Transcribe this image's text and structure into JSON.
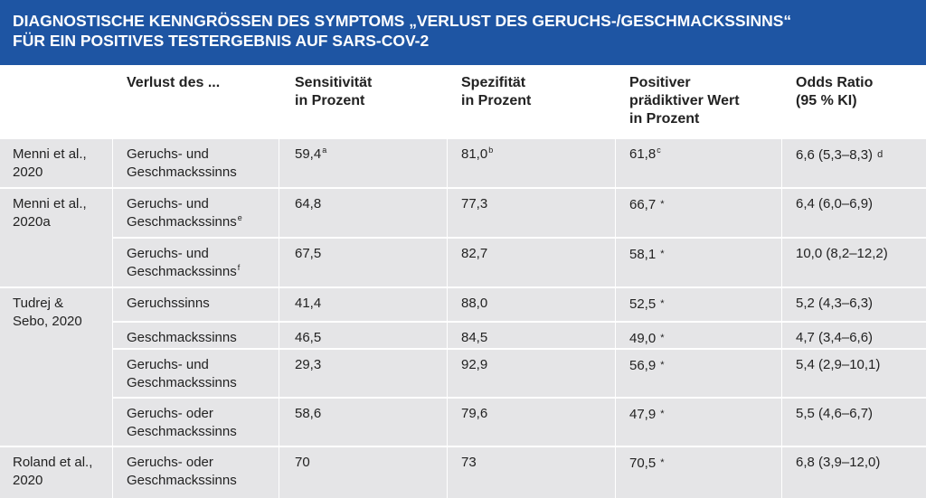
{
  "title": {
    "line1": "DIAGNOSTISCHE KENNGRÖSSEN DES SYMPTOMS „VERLUST DES GERUCHS-/GESCHMACKSSINNS“",
    "line2": "FÜR EIN POSITIVES TESTERGEBNIS AUF SARS-COV-2"
  },
  "headers": {
    "loss": "Verlust des ...",
    "sens_1": "Sensitivität",
    "sens_2": "in Prozent",
    "spez_1": "Spezifität",
    "spez_2": "in Prozent",
    "ppv_1": "Positiver",
    "ppv_2": "prädiktiver Wert",
    "ppv_3": "in Prozent",
    "or_1": "Odds Ratio",
    "or_2": "(95 % KI)"
  },
  "groups": [
    {
      "author_1": "Menni et al.,",
      "author_2": "2020"
    },
    {
      "author_1": "Menni et al.,",
      "author_2": "2020a"
    },
    {
      "author_1": "Tudrej &",
      "author_2": "Sebo, 2020"
    },
    {
      "author_1": "Roland et al.,",
      "author_2": "2020"
    }
  ],
  "rows": [
    {
      "loss_1": "Geruchs- und",
      "loss_2": "Geschmackssinns",
      "loss_sup": "",
      "sens": "59,4",
      "sens_sup": "a",
      "spez": "81,0",
      "spez_sup": "b",
      "ppv": "61,8",
      "ppv_sup": "c",
      "ppv_star": "",
      "or": "6,6 (5,3–8,3)",
      "or_sup": "d"
    },
    {
      "loss_1": "Geruchs- und",
      "loss_2": "Geschmackssinns",
      "loss_sup": "e",
      "sens": "64,8",
      "sens_sup": "",
      "spez": "77,3",
      "spez_sup": "",
      "ppv": "66,7",
      "ppv_sup": "",
      "ppv_star": "*",
      "or": "6,4 (6,0–6,9)",
      "or_sup": ""
    },
    {
      "loss_1": "Geruchs- und",
      "loss_2": "Geschmackssinns",
      "loss_sup": "f",
      "sens": "67,5",
      "sens_sup": "",
      "spez": "82,7",
      "spez_sup": "",
      "ppv": "58,1",
      "ppv_sup": "",
      "ppv_star": "*",
      "or": "10,0 (8,2–12,2)",
      "or_sup": ""
    },
    {
      "loss_1": "Geruchssinns",
      "loss_2": "",
      "loss_sup": "",
      "sens": "41,4",
      "sens_sup": "",
      "spez": "88,0",
      "spez_sup": "",
      "ppv": "52,5",
      "ppv_sup": "",
      "ppv_star": "*",
      "or": "5,2 (4,3–6,3)",
      "or_sup": ""
    },
    {
      "loss_1": "Geschmackssinns",
      "loss_2": "",
      "loss_sup": "",
      "sens": "46,5",
      "sens_sup": "",
      "spez": "84,5",
      "spez_sup": "",
      "ppv": "49,0",
      "ppv_sup": "",
      "ppv_star": "*",
      "or": "4,7 (3,4–6,6)",
      "or_sup": ""
    },
    {
      "loss_1": "Geruchs- und",
      "loss_2": "Geschmackssinns",
      "loss_sup": "",
      "sens": "29,3",
      "sens_sup": "",
      "spez": "92,9",
      "spez_sup": "",
      "ppv": "56,9",
      "ppv_sup": "",
      "ppv_star": "*",
      "or": "5,4 (2,9–10,1)",
      "or_sup": ""
    },
    {
      "loss_1": "Geruchs- oder",
      "loss_2": "Geschmackssinns",
      "loss_sup": "",
      "sens": "58,6",
      "sens_sup": "",
      "spez": "79,6",
      "spez_sup": "",
      "ppv": "47,9",
      "ppv_sup": "",
      "ppv_star": "*",
      "or": "5,5 (4,6–6,7)",
      "or_sup": ""
    },
    {
      "loss_1": "Geruchs- oder",
      "loss_2": "Geschmackssinns",
      "loss_sup": "",
      "sens": "70",
      "sens_sup": "",
      "spez": "73",
      "spez_sup": "",
      "ppv": "70,5",
      "ppv_sup": "",
      "ppv_star": "*",
      "or": "6,8 (3,9–12,0)",
      "or_sup": ""
    }
  ]
}
